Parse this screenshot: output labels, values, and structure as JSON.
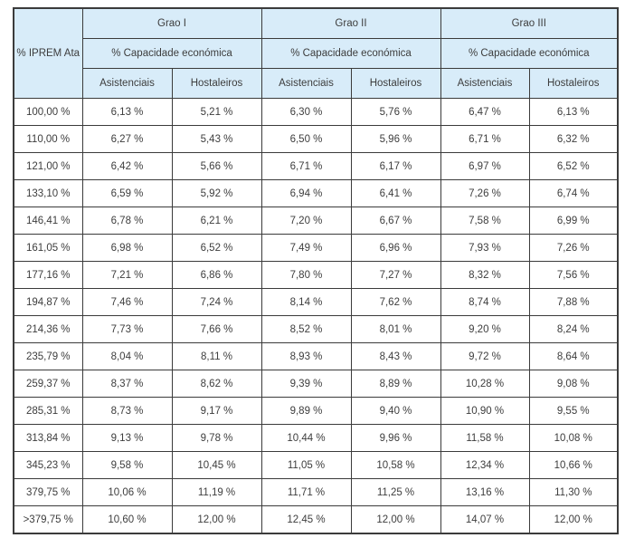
{
  "table": {
    "iprem_header": "% IPREM\nAta",
    "groups": [
      {
        "label": "Grao I",
        "sub": "% Capacidade económica",
        "col_a": "Asistenciais",
        "col_b": "Hostaleiros"
      },
      {
        "label": "Grao II",
        "sub": "% Capacidade económica",
        "col_a": "Asistenciais",
        "col_b": "Hostaleiros"
      },
      {
        "label": "Grao III",
        "sub": "% Capacidade económica",
        "col_a": "Asistenciais",
        "col_b": "Hostaleiros"
      }
    ],
    "rows": [
      {
        "iprem": "100,00 %",
        "values": [
          "6,13 %",
          "5,21 %",
          "6,30 %",
          "5,76 %",
          "6,47 %",
          "6,13 %"
        ]
      },
      {
        "iprem": "110,00 %",
        "values": [
          "6,27 %",
          "5,43 %",
          "6,50 %",
          "5,96 %",
          "6,71 %",
          "6,32 %"
        ]
      },
      {
        "iprem": "121,00 %",
        "values": [
          "6,42 %",
          "5,66 %",
          "6,71 %",
          "6,17 %",
          "6,97 %",
          "6,52 %"
        ]
      },
      {
        "iprem": "133,10 %",
        "values": [
          "6,59 %",
          "5,92 %",
          "6,94 %",
          "6,41 %",
          "7,26 %",
          "6,74 %"
        ]
      },
      {
        "iprem": "146,41 %",
        "values": [
          "6,78 %",
          "6,21 %",
          "7,20 %",
          "6,67 %",
          "7,58 %",
          "6,99 %"
        ]
      },
      {
        "iprem": "161,05 %",
        "values": [
          "6,98 %",
          "6,52 %",
          "7,49 %",
          "6,96 %",
          "7,93 %",
          "7,26 %"
        ]
      },
      {
        "iprem": "177,16 %",
        "values": [
          "7,21 %",
          "6,86 %",
          "7,80 %",
          "7,27 %",
          "8,32 %",
          "7,56 %"
        ]
      },
      {
        "iprem": "194,87 %",
        "values": [
          "7,46 %",
          "7,24 %",
          "8,14 %",
          "7,62 %",
          "8,74 %",
          "7,88 %"
        ]
      },
      {
        "iprem": "214,36 %",
        "values": [
          "7,73 %",
          "7,66 %",
          "8,52 %",
          "8,01 %",
          "9,20 %",
          "8,24 %"
        ]
      },
      {
        "iprem": "235,79 %",
        "values": [
          "8,04 %",
          "8,11 %",
          "8,93 %",
          "8,43 %",
          "9,72 %",
          "8,64 %"
        ]
      },
      {
        "iprem": "259,37 %",
        "values": [
          "8,37 %",
          "8,62 %",
          "9,39 %",
          "8,89 %",
          "10,28 %",
          "9,08 %"
        ]
      },
      {
        "iprem": "285,31 %",
        "values": [
          "8,73 %",
          "9,17 %",
          "9,89 %",
          "9,40 %",
          "10,90 %",
          "9,55 %"
        ]
      },
      {
        "iprem": "313,84 %",
        "values": [
          "9,13 %",
          "9,78 %",
          "10,44 %",
          "9,96 %",
          "11,58 %",
          "10,08 %"
        ]
      },
      {
        "iprem": "345,23 %",
        "values": [
          "9,58 %",
          "10,45 %",
          "11,05 %",
          "10,58 %",
          "12,34 %",
          "10,66 %"
        ]
      },
      {
        "iprem": "379,75 %",
        "values": [
          "10,06 %",
          "11,19 %",
          "11,71 %",
          "11,25 %",
          "13,16 %",
          "11,30 %"
        ]
      },
      {
        "iprem": ">379,75 %",
        "values": [
          "10,60 %",
          "12,00 %",
          "12,45 %",
          "12,00 %",
          "14,07 %",
          "12,00 %"
        ]
      }
    ]
  },
  "colors": {
    "header_bg": "#d8ecf9",
    "border": "#3b3b3b",
    "text": "#3d3d3d",
    "page_bg": "#ffffff"
  }
}
